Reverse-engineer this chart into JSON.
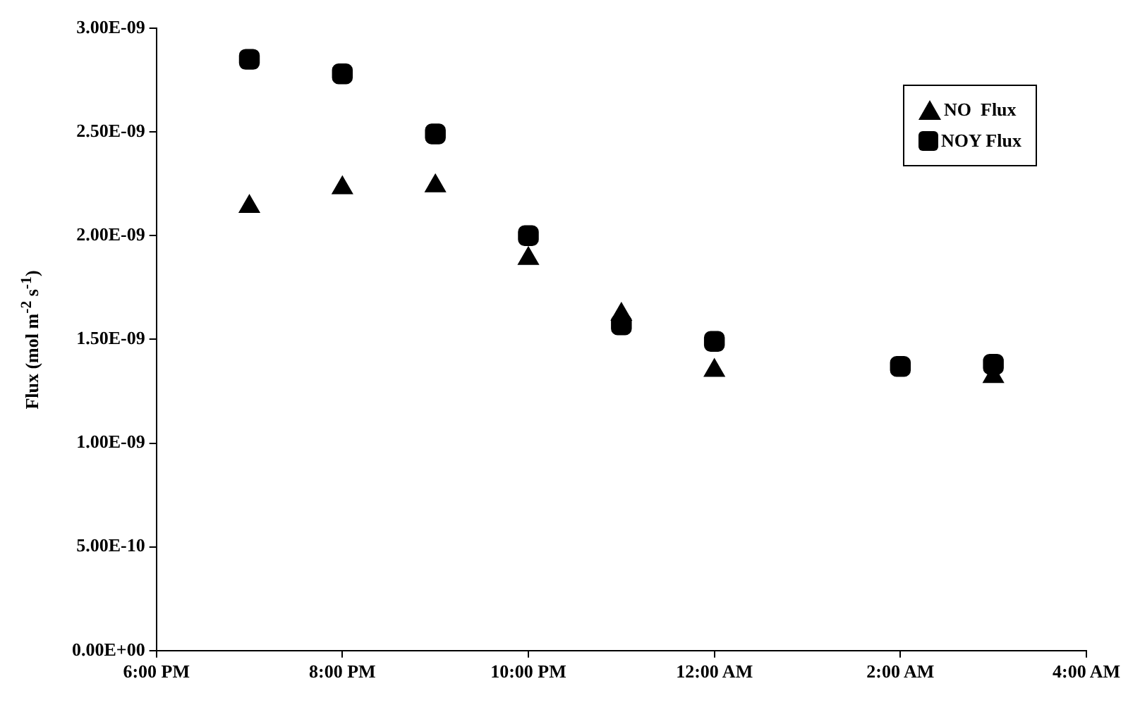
{
  "chart_data": {
    "type": "scatter",
    "ylabel": "Flux (mol m$^{-2}$ s$^{-1}$)",
    "x": [
      "2000-01-01T19:00",
      "2000-01-01T20:00",
      "2000-01-01T21:00",
      "2000-01-01T22:00",
      "2000-01-01T23:00",
      "2000-01-02T00:00",
      "2000-01-02T02:00",
      "2000-01-02T03:00"
    ],
    "series": [
      {
        "name": "NO  Flux",
        "color": "#000000",
        "marker": "triangle",
        "values": [
          2.14e-09,
          2.23e-09,
          2.24e-09,
          1.89e-09,
          1.62e-09,
          1.35e-09,
          null,
          1.32e-09
        ]
      },
      {
        "name": "NOY Flux",
        "color": "#000000",
        "marker": "square",
        "values": [
          2.85e-09,
          2.78e-09,
          2.49e-09,
          2e-09,
          1.57e-09,
          1.49e-09,
          1.37e-09,
          1.38e-09
        ]
      }
    ],
    "xlim": [
      "2000-01-01T18:00",
      "2000-01-02T04:00"
    ],
    "xticks": [
      {
        "value": "2000-01-01T18:00",
        "label": "6:00 PM"
      },
      {
        "value": "2000-01-01T20:00",
        "label": "8:00 PM"
      },
      {
        "value": "2000-01-01T22:00",
        "label": "10:00 PM"
      },
      {
        "value": "2000-01-02T00:00",
        "label": "12:00 AM"
      },
      {
        "value": "2000-01-02T02:00",
        "label": "2:00 AM"
      },
      {
        "value": "2000-01-02T04:00",
        "label": "4:00 AM"
      }
    ],
    "ylim": [
      0,
      3e-09
    ],
    "yticks": [
      {
        "value": 0,
        "label": "0.00E+00"
      },
      {
        "value": 5e-10,
        "label": "5.00E-10"
      },
      {
        "value": 1e-09,
        "label": "1.00E-09"
      },
      {
        "value": 1.5e-09,
        "label": "1.50E-09"
      },
      {
        "value": 2e-09,
        "label": "2.00E-09"
      },
      {
        "value": 2.5e-09,
        "label": "2.50E-09"
      },
      {
        "value": 3e-09,
        "label": "3.00E-09"
      }
    ],
    "grid": false,
    "legend": "top right"
  }
}
